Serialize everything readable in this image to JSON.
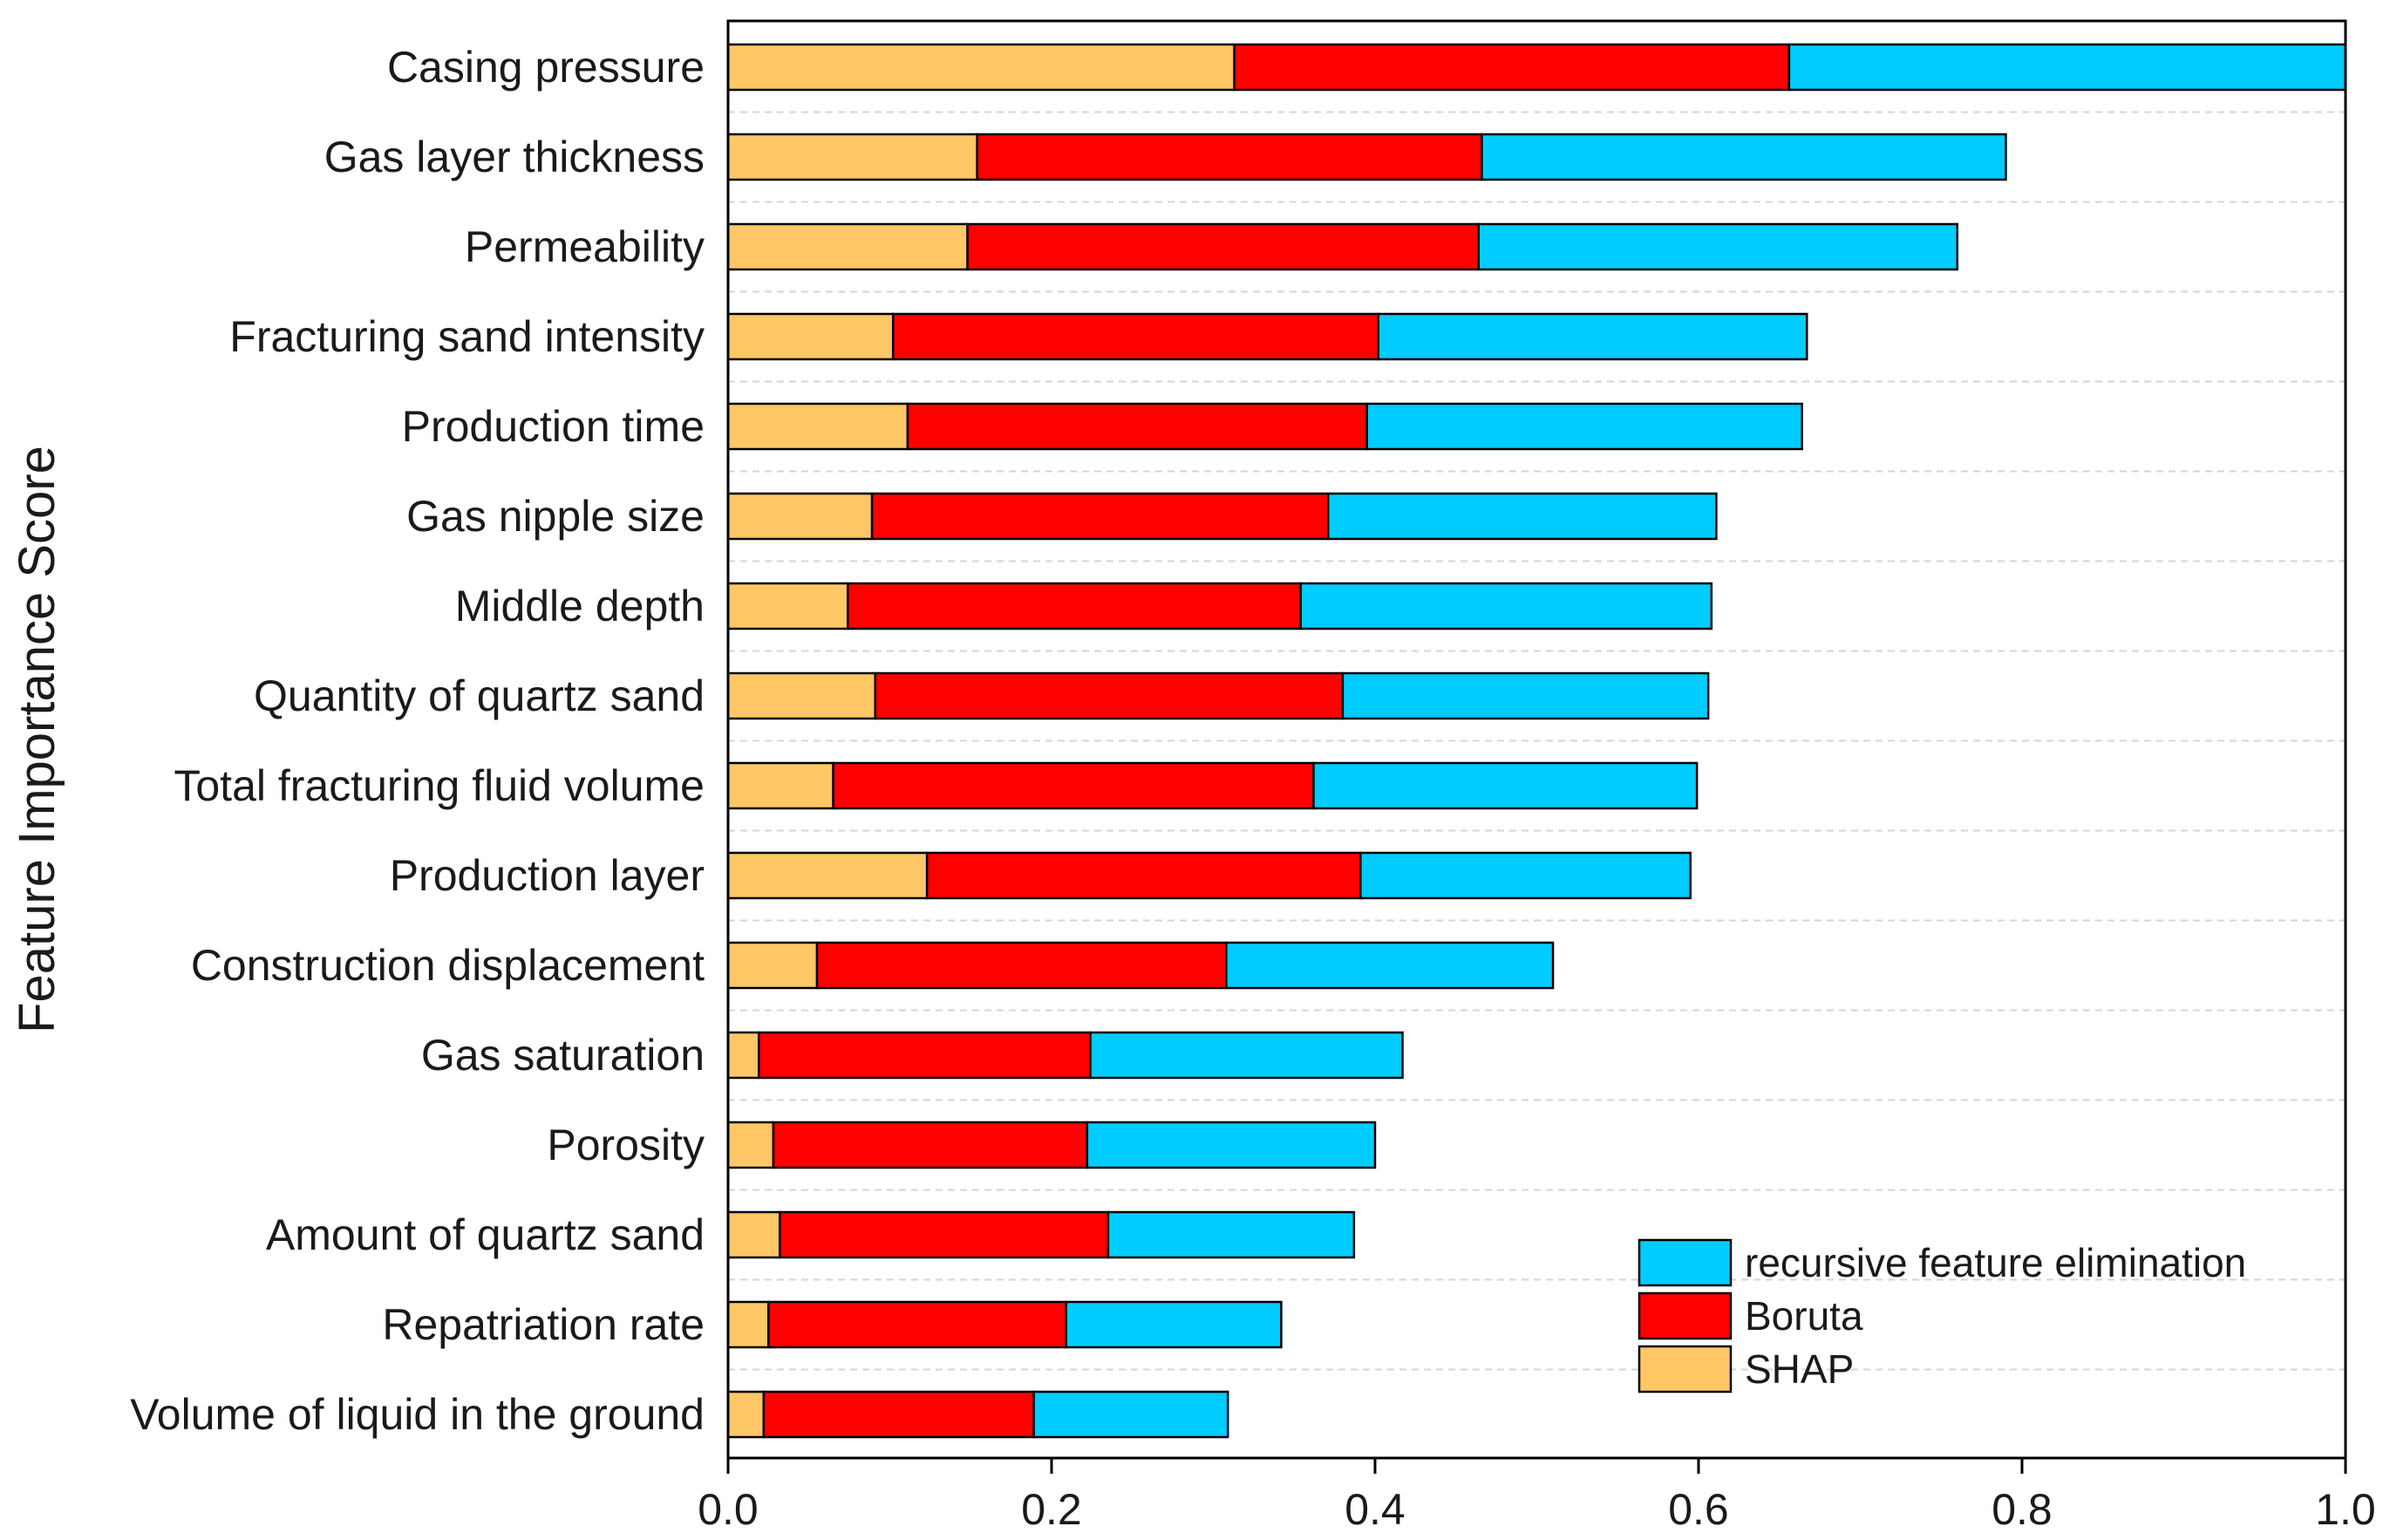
{
  "chart_data": {
    "type": "bar",
    "orientation": "horizontal",
    "stacked": true,
    "title": "",
    "xlabel": "",
    "ylabel": "Feature Importance Score",
    "xlim": [
      0,
      1.0
    ],
    "xticks": [
      0.0,
      0.2,
      0.4,
      0.6,
      0.8,
      1.0
    ],
    "xtick_labels": [
      "0.0",
      "0.2",
      "0.4",
      "0.6",
      "0.8",
      "1.0"
    ],
    "grid": "horizontal-dashed",
    "legend_position": "bottom-right",
    "categories": [
      "Casing pressure",
      "Gas layer thickness",
      "Permeability",
      "Fracturing sand intensity",
      "Production time",
      "Gas nipple size",
      "Middle depth",
      "Quantity of quartz sand",
      "Total fracturing fluid volume",
      "Production layer",
      "Construction displacement",
      "Gas saturation",
      "Porosity",
      "Amount of quartz sand",
      "Repatriation rate",
      "Volume of liquid in the ground"
    ],
    "series": [
      {
        "name": "SHAP",
        "color": "#FFC766",
        "values": [
          0.313,
          0.154,
          0.148,
          0.102,
          0.111,
          0.089,
          0.074,
          0.091,
          0.065,
          0.123,
          0.055,
          0.019,
          0.028,
          0.032,
          0.025,
          0.022
        ]
      },
      {
        "name": "Boruta",
        "color": "#FF0000",
        "values": [
          0.343,
          0.312,
          0.316,
          0.3,
          0.284,
          0.282,
          0.28,
          0.289,
          0.297,
          0.268,
          0.253,
          0.205,
          0.194,
          0.203,
          0.184,
          0.167
        ]
      },
      {
        "name": "recursive feature elimination",
        "color": "#00CCFF",
        "values": [
          0.344,
          0.324,
          0.296,
          0.265,
          0.269,
          0.24,
          0.254,
          0.226,
          0.237,
          0.204,
          0.202,
          0.193,
          0.178,
          0.152,
          0.133,
          0.12
        ]
      }
    ],
    "legend_order": [
      "recursive feature elimination",
      "Boruta",
      "SHAP"
    ]
  }
}
